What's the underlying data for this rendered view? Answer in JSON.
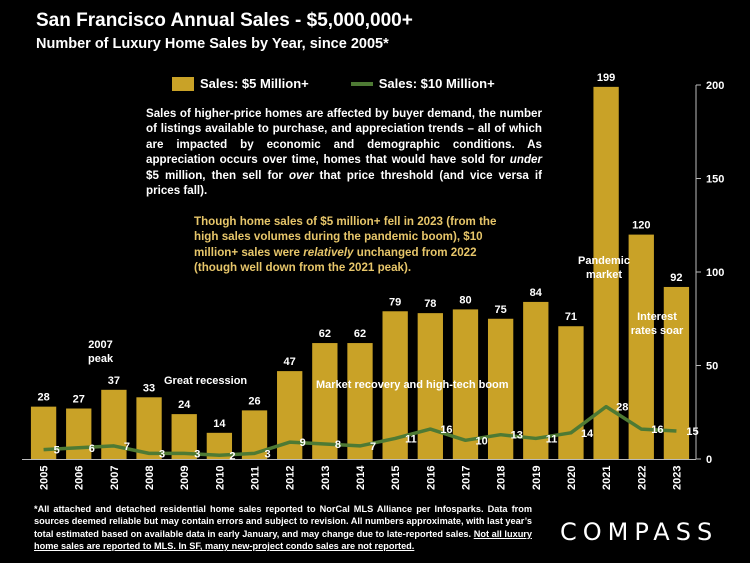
{
  "title": "San Francisco Annual Sales - $5,000,000+",
  "subtitle": "Number of Luxury Home Sales by Year, since 2005*",
  "description_html": "Sales of higher-price homes are affected by buyer demand, the number of listings available to purchase, and appreciation trends – all of which are impacted by economic and demographic conditions. As appreciation occurs over time, homes that would have sold for <b><i>under</i></b> $5 million, then sell for <b><i>over</i></b> that price threshold (and vice versa if prices fall).",
  "note_html": "Though home sales of $5 million+ fell in 2023 (from the high sales volumes during the pandemic boom), $10 million+ sales were <i>relatively</i> unchanged from 2022 (though well down from the 2021 peak).",
  "footnote_pre": "*All attached and detached residential home sales reported to NorCal MLS Alliance per Infosparks. Data from sources deemed reliable but may contain errors and subject to revision. All numbers approximate, with last year’s total estimated based on available data in early January, and may change due to late-reported sales. ",
  "footnote_underlined": "Not all luxury home sales are reported to MLS. In SF, many new-project condo sales are not reported.",
  "logo": "COMPASS",
  "annotations": {
    "peak_2007": "2007\npeak",
    "great_recession": "Great recession",
    "market_recovery": "Market recovery and high-tech boom",
    "pandemic": "Pandemic\nmarket",
    "interest": "Interest\nrates soar"
  },
  "colors": {
    "bar": "#C9A227",
    "line": "#4E7A34",
    "background": "#000000",
    "note_text": "#E7C66A"
  },
  "chart_data": {
    "type": "bar",
    "categories": [
      "2005",
      "2006",
      "2007",
      "2008",
      "2009",
      "2010",
      "2011",
      "2012",
      "2013",
      "2014",
      "2015",
      "2016",
      "2017",
      "2018",
      "2019",
      "2020",
      "2021",
      "2022",
      "2023"
    ],
    "series": [
      {
        "name": "Sales:  $5 Million+",
        "type": "bar",
        "values": [
          28,
          27,
          37,
          33,
          24,
          14,
          26,
          47,
          62,
          62,
          79,
          78,
          80,
          75,
          84,
          71,
          199,
          120,
          92
        ]
      },
      {
        "name": "Sales: $10 Million+",
        "type": "line",
        "values": [
          5,
          6,
          7,
          3,
          3,
          2,
          3,
          9,
          8,
          7,
          11,
          16,
          10,
          13,
          11,
          14,
          28,
          16,
          15
        ]
      }
    ],
    "y_axis": {
      "side": "right",
      "ylim": [
        0,
        200
      ],
      "ticks": [
        0,
        50,
        100,
        150,
        200
      ]
    },
    "grid": false,
    "legend": "top"
  }
}
